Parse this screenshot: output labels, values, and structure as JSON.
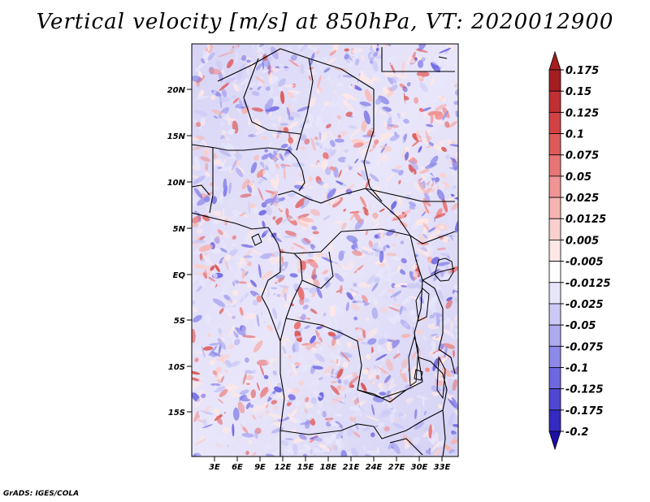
{
  "title": "Vertical velocity [m/s] at 850hPa, VT: 2020012900",
  "credit": "GrADS: IGES/COLA",
  "map": {
    "lat_labels": [
      {
        "lat": 20,
        "label": "20N"
      },
      {
        "lat": 15,
        "label": "15N"
      },
      {
        "lat": 10,
        "label": "10N"
      },
      {
        "lat": 5,
        "label": "5N"
      },
      {
        "lat": 0,
        "label": "EQ"
      },
      {
        "lat": -5,
        "label": "5S"
      },
      {
        "lat": -10,
        "label": "10S"
      },
      {
        "lat": -15,
        "label": "15S"
      }
    ],
    "lon_labels": [
      {
        "lon": 3,
        "label": "3E"
      },
      {
        "lon": 6,
        "label": "6E"
      },
      {
        "lon": 9,
        "label": "9E"
      },
      {
        "lon": 12,
        "label": "12E"
      },
      {
        "lon": 15,
        "label": "15E"
      },
      {
        "lon": 18,
        "label": "18E"
      },
      {
        "lon": 21,
        "label": "21E"
      },
      {
        "lon": 24,
        "label": "24E"
      },
      {
        "lon": 27,
        "label": "27E"
      },
      {
        "lon": 30,
        "label": "30E"
      },
      {
        "lon": 33,
        "label": "33E"
      }
    ],
    "lat_range": [
      -20,
      24.5
    ],
    "lon_range": [
      0.5,
      35.5
    ]
  },
  "colorbar": {
    "levels": [
      {
        "label": "0.175",
        "color": "#a51e22"
      },
      {
        "label": "0.15",
        "color": "#c13033"
      },
      {
        "label": "0.125",
        "color": "#d24244"
      },
      {
        "label": "0.1",
        "color": "#de5a5a"
      },
      {
        "label": "0.075",
        "color": "#e87575"
      },
      {
        "label": "0.05",
        "color": "#f09494"
      },
      {
        "label": "0.025",
        "color": "#f6b4b2"
      },
      {
        "label": "0.0125",
        "color": "#fad0ce"
      },
      {
        "label": "0.005",
        "color": "#fde8e6"
      },
      {
        "label": "-0.005",
        "color": "#ffffff"
      },
      {
        "label": "-0.0125",
        "color": "#e7e6fb"
      },
      {
        "label": "-0.025",
        "color": "#cbcaf6"
      },
      {
        "label": "-0.05",
        "color": "#adaaf0"
      },
      {
        "label": "-0.075",
        "color": "#8e8aea"
      },
      {
        "label": "-0.1",
        "color": "#6f68e1"
      },
      {
        "label": "-0.125",
        "color": "#5048d4"
      },
      {
        "label": "-0.175",
        "color": "#3429c1"
      },
      {
        "label": "-0.2",
        "color": "#1c0fa5"
      }
    ],
    "top_color": "#a51e22",
    "bottom_color": "#1c0fa5"
  },
  "colors": {
    "land_border": "#000000",
    "warm": "#e05a5a",
    "cool": "#6f68e1"
  }
}
